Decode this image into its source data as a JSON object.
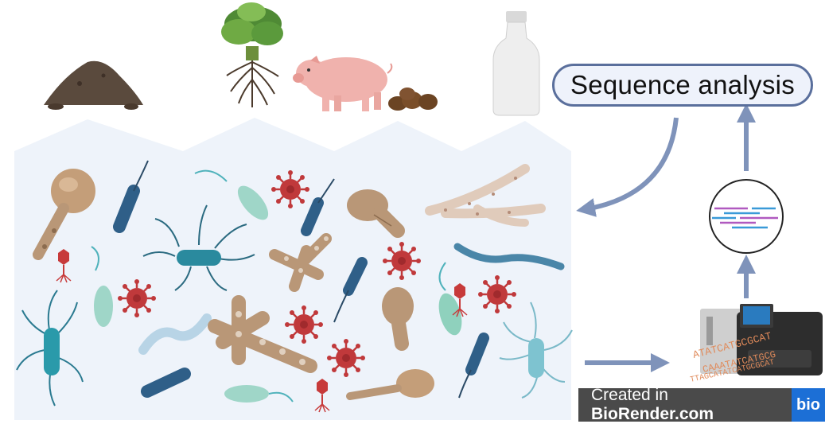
{
  "diagram": {
    "label_box": "Sequence analysis",
    "watermark_prefix": "Created in ",
    "watermark_brand": "BioRender.com",
    "watermark_logo": "bio",
    "dna_text_1": "ATATCATGCGCAT",
    "dna_text_2": "CAAATATCATGCG",
    "dna_text_3": "TTAGCATATCATGCGCAT"
  },
  "sources": [
    "soil-icon",
    "plant-with-roots-icon",
    "pig-icon",
    "manure-icon",
    "water-bottle-icon"
  ],
  "microbes": [
    "bacterium-icon",
    "bacteriophage-icon",
    "virus-icon",
    "fungal-hyphae-icon",
    "spore-icon"
  ],
  "colors": {
    "panel_fill": "#eef3fa",
    "arrow": "#7f93ba",
    "pill_border": "#5a6f9c",
    "rod_blue": "#2f5f88",
    "rod_teal": "#4fb2bb",
    "rod_mint": "#9fd6c8",
    "fungus_tan": "#b99777",
    "virus_red": "#c0393b",
    "phage_red": "#c73a3a"
  }
}
